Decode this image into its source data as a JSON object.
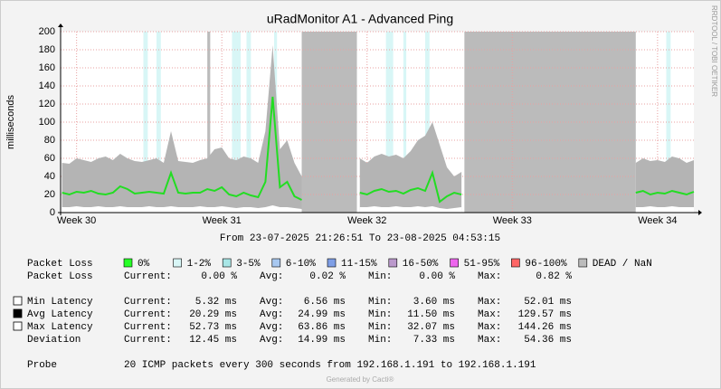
{
  "chart_data": {
    "type": "line",
    "title": "uRadMonitor A1 - Advanced Ping",
    "y_label": "milliseconds",
    "side_label": "RRDTOOL / TOBI OETIKER",
    "period": "From 23-07-2025 21:26:51 To 23-08-2025 04:53:15",
    "xlim": [
      29.89,
      34.25
    ],
    "xticks": [
      {
        "value": 30,
        "label": "Week 30"
      },
      {
        "value": 31,
        "label": "Week 31"
      },
      {
        "value": 32,
        "label": "Week 32"
      },
      {
        "value": 33,
        "label": "Week 33"
      },
      {
        "value": 34,
        "label": "Week 34"
      }
    ],
    "ylim": [
      0,
      200
    ],
    "yticks": [
      0,
      20,
      40,
      60,
      80,
      100,
      120,
      140,
      160,
      180,
      200
    ],
    "grid": true,
    "x": [
      29.9,
      29.95,
      30.0,
      30.05,
      30.1,
      30.15,
      30.2,
      30.25,
      30.3,
      30.35,
      30.4,
      30.45,
      30.5,
      30.55,
      30.6,
      30.65,
      30.7,
      30.75,
      30.8,
      30.85,
      30.9,
      30.95,
      31.0,
      31.05,
      31.1,
      31.15,
      31.2,
      31.25,
      31.3,
      31.35,
      31.4,
      31.45,
      31.5,
      31.55,
      31.75,
      31.95,
      32.0,
      32.05,
      32.1,
      32.15,
      32.2,
      32.25,
      32.3,
      32.35,
      32.4,
      32.45,
      32.5,
      32.55,
      32.6,
      32.65,
      33.3,
      33.85,
      33.9,
      33.95,
      34.0,
      34.05,
      34.1,
      34.15,
      34.2,
      34.25
    ],
    "series": [
      {
        "name": "Max Latency",
        "color": "#b4b4b4",
        "swatch": "#ffffff",
        "values": [
          55,
          54,
          60,
          58,
          56,
          60,
          62,
          58,
          65,
          60,
          57,
          56,
          58,
          60,
          55,
          90,
          57,
          56,
          55,
          58,
          60,
          70,
          72,
          60,
          58,
          62,
          60,
          55,
          90,
          185,
          70,
          80,
          55,
          40,
          null,
          60,
          55,
          62,
          65,
          62,
          64,
          60,
          68,
          80,
          85,
          100,
          75,
          50,
          40,
          45,
          null,
          55,
          60,
          57,
          58,
          56,
          62,
          60,
          55,
          58
        ]
      },
      {
        "name": "Min Latency",
        "color": "#ffffff",
        "swatch": "#ffffff",
        "values": [
          6,
          6,
          7,
          6,
          6,
          7,
          6,
          6,
          7,
          6,
          6,
          6,
          7,
          6,
          6,
          7,
          6,
          6,
          6,
          7,
          6,
          6,
          7,
          6,
          5,
          6,
          6,
          5,
          6,
          8,
          6,
          6,
          5,
          4,
          null,
          6,
          6,
          7,
          6,
          6,
          7,
          6,
          6,
          7,
          6,
          7,
          5,
          4,
          5,
          6,
          null,
          6,
          6,
          7,
          6,
          6,
          7,
          6,
          6,
          6
        ]
      },
      {
        "name": "Avg Latency",
        "color": "#22dd22",
        "swatch": "#000000",
        "values": [
          22,
          20,
          23,
          22,
          24,
          21,
          20,
          22,
          29,
          26,
          21,
          22,
          23,
          22,
          21,
          44,
          22,
          21,
          22,
          22,
          26,
          24,
          28,
          20,
          18,
          22,
          19,
          17,
          34,
          128,
          28,
          34,
          18,
          14,
          null,
          22,
          20,
          24,
          26,
          23,
          24,
          21,
          25,
          27,
          24,
          44,
          12,
          18,
          22,
          20,
          null,
          22,
          24,
          20,
          22,
          21,
          24,
          22,
          20,
          23
        ]
      }
    ],
    "loss_legend": {
      "label": "Packet Loss",
      "items": [
        {
          "label": "0%",
          "color": "#26ff26"
        },
        {
          "label": "1-2%",
          "color": "#d8f6f6"
        },
        {
          "label": "3-5%",
          "color": "#a8e6e6"
        },
        {
          "label": "6-10%",
          "color": "#a8c8f0"
        },
        {
          "label": "11-15%",
          "color": "#7f9fe6"
        },
        {
          "label": "16-50%",
          "color": "#bb99cc"
        },
        {
          "label": "51-95%",
          "color": "#ee66ee"
        },
        {
          "label": "96-100%",
          "color": "#ff6666"
        },
        {
          "label": "DEAD / NaN",
          "color": "#bbbbbb"
        }
      ]
    },
    "loss_bands": [
      [
        30.46,
        30.49
      ],
      [
        30.55,
        30.58
      ],
      [
        31.07,
        31.13
      ],
      [
        31.17,
        31.2
      ],
      [
        31.36,
        31.38
      ],
      [
        32.13,
        32.18
      ],
      [
        32.25,
        32.27
      ],
      [
        32.4,
        32.43
      ],
      [
        34.06,
        34.09
      ]
    ],
    "dead": [
      [
        30.9,
        30.92
      ],
      [
        31.55,
        31.93
      ],
      [
        32.67,
        33.85
      ]
    ]
  },
  "stat_headers": [
    "Current:",
    "Avg:",
    "Min:",
    "Max:"
  ],
  "stats": [
    {
      "label": "Packet Loss",
      "values": [
        "0.00 %",
        "0.02 %",
        "0.00 %",
        "0.82 %"
      ]
    },
    {
      "values": [
        "5.32 ms",
        "6.56 ms",
        "3.60 ms",
        "52.01 ms"
      ]
    },
    {
      "values": [
        "20.29 ms",
        "24.99 ms",
        "11.50 ms",
        "129.57 ms"
      ]
    },
    {
      "values": [
        "52.73 ms",
        "63.86 ms",
        "32.07 ms",
        "144.26 ms"
      ]
    },
    {
      "label": "Deviation",
      "values": [
        "12.45 ms",
        "14.99 ms",
        "7.33 ms",
        "54.36 ms"
      ]
    }
  ],
  "probe": {
    "label": "Probe",
    "text": "20 ICMP packets every 300 seconds from 192.168.1.191 to 192.168.1.191"
  },
  "footer": "Generated by Cacti®"
}
